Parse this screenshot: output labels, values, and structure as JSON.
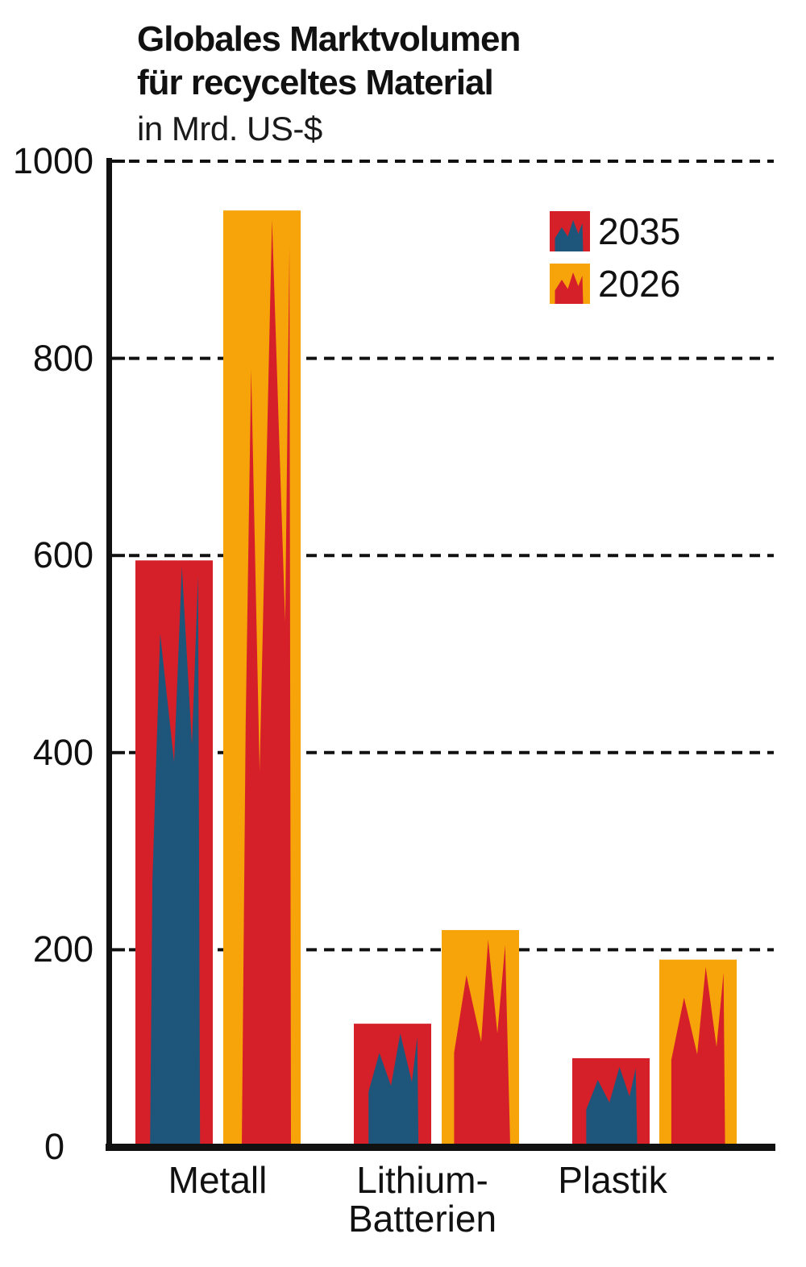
{
  "title": {
    "line1": "Globales Marktvolumen",
    "line2": "für recyceltes Material",
    "subtitle": "in Mrd. US-$"
  },
  "colors": {
    "red": "#d5202a",
    "blue": "#1d567a",
    "orange": "#f6a40a",
    "axis": "#111111",
    "text": "#1a1a1a",
    "background": "#ffffff"
  },
  "legend": {
    "position": "top-right",
    "items": [
      {
        "label": "2035",
        "swatch": "red-box-with-blue-flame"
      },
      {
        "label": "2026",
        "swatch": "orange-box-with-red-flame"
      }
    ]
  },
  "chart_data": {
    "type": "bar",
    "title": "Globales Marktvolumen für recyceltes Material",
    "subtitle_unit": "in Mrd. US-$",
    "categories": [
      "Metall",
      "Lithium-Batterien",
      "Plastik"
    ],
    "categories_display": [
      [
        "Metall"
      ],
      [
        "Lithium-",
        "Batterien"
      ],
      [
        "Plastik"
      ]
    ],
    "series": [
      {
        "name": "2035",
        "values": [
          595,
          125,
          90
        ],
        "bar_color": "#d5202a",
        "flame_color": "#1d567a"
      },
      {
        "name": "2026",
        "values": [
          950,
          220,
          190
        ],
        "bar_color": "#f6a40a",
        "flame_color": "#d5202a"
      }
    ],
    "ylim": [
      0,
      1000
    ],
    "yticks": [
      1000,
      800,
      600,
      400,
      200,
      0
    ],
    "grid": "horizontal-dashed",
    "legend_position": "top-right"
  }
}
